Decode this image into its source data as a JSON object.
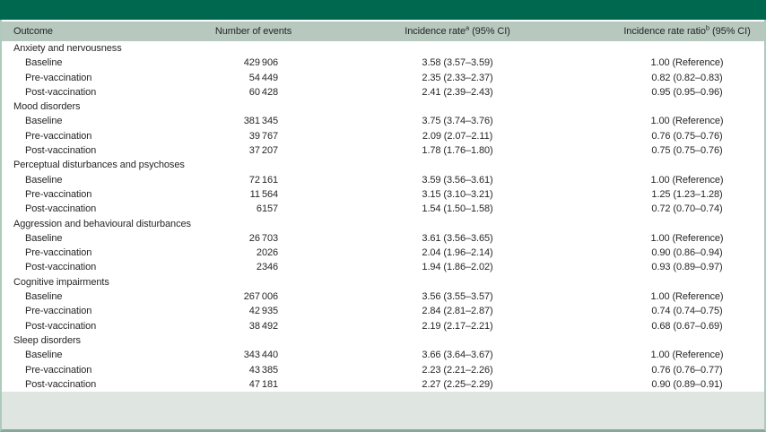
{
  "theme": {
    "title_bar_green": "#00684e",
    "header_band_green": "#b7c8bf",
    "footer_band_green": "#dfe5e0",
    "frame_border_light": "#aecabb",
    "frame_border_strong": "#86a998",
    "text_color": "#262626"
  },
  "table": {
    "columns": {
      "outcome": "Outcome",
      "events": "Number of events",
      "rate": {
        "pre": "Incidence rate",
        "sup": "a",
        "post": " (95% CI)"
      },
      "ratio": {
        "pre": "Incidence rate ratio",
        "sup": "b",
        "post": " (95% CI)"
      }
    },
    "groups": [
      {
        "name": "Anxiety and nervousness",
        "rows": [
          {
            "label": "Baseline",
            "events": "429 906",
            "rate": "3.58 (3.57–3.59)",
            "ratio": "1.00 (Reference)"
          },
          {
            "label": "Pre-vaccination",
            "events": "54 449",
            "rate": "2.35 (2.33–2.37)",
            "ratio": "0.82 (0.82–0.83)"
          },
          {
            "label": "Post-vaccination",
            "events": "60 428",
            "rate": "2.41 (2.39–2.43)",
            "ratio": "0.95 (0.95–0.96)"
          }
        ]
      },
      {
        "name": "Mood disorders",
        "rows": [
          {
            "label": "Baseline",
            "events": "381 345",
            "rate": "3.75 (3.74–3.76)",
            "ratio": "1.00 (Reference)"
          },
          {
            "label": "Pre-vaccination",
            "events": "39 767",
            "rate": "2.09 (2.07–2.11)",
            "ratio": "0.76 (0.75–0.76)"
          },
          {
            "label": "Post-vaccination",
            "events": "37 207",
            "rate": "1.78 (1.76–1.80)",
            "ratio": "0.75 (0.75–0.76)"
          }
        ]
      },
      {
        "name": "Perceptual disturbances and psychoses",
        "rows": [
          {
            "label": "Baseline",
            "events": "72 161",
            "rate": "3.59 (3.56–3.61)",
            "ratio": "1.00 (Reference)"
          },
          {
            "label": "Pre-vaccination",
            "events": "11 564",
            "rate": "3.15 (3.10–3.21)",
            "ratio": "1.25 (1.23–1.28)"
          },
          {
            "label": "Post-vaccination",
            "events": "6157",
            "rate": "1.54 (1.50–1.58)",
            "ratio": "0.72 (0.70–0.74)"
          }
        ]
      },
      {
        "name": "Aggression and behavioural disturbances",
        "rows": [
          {
            "label": "Baseline",
            "events": "26 703",
            "rate": "3.61 (3.56–3.65)",
            "ratio": "1.00 (Reference)"
          },
          {
            "label": "Pre-vaccination",
            "events": "2026",
            "rate": "2.04 (1.96–2.14)",
            "ratio": "0.90 (0.86–0.94)"
          },
          {
            "label": "Post-vaccination",
            "events": "2346",
            "rate": "1.94 (1.86–2.02)",
            "ratio": "0.93 (0.89–0.97)"
          }
        ]
      },
      {
        "name": "Cognitive impairments",
        "rows": [
          {
            "label": "Baseline",
            "events": "267 006",
            "rate": "3.56 (3.55–3.57)",
            "ratio": "1.00 (Reference)"
          },
          {
            "label": "Pre-vaccination",
            "events": "42 935",
            "rate": "2.84 (2.81–2.87)",
            "ratio": "0.74 (0.74–0.75)"
          },
          {
            "label": "Post-vaccination",
            "events": "38 492",
            "rate": "2.19 (2.17–2.21)",
            "ratio": "0.68 (0.67–0.69)"
          }
        ]
      },
      {
        "name": "Sleep disorders",
        "rows": [
          {
            "label": "Baseline",
            "events": "343 440",
            "rate": "3.66 (3.64–3.67)",
            "ratio": "1.00 (Reference)"
          },
          {
            "label": "Pre-vaccination",
            "events": "43 385",
            "rate": "2.23 (2.21–2.26)",
            "ratio": "0.76 (0.76–0.77)"
          },
          {
            "label": "Post-vaccination",
            "events": "47 181",
            "rate": "2.27 (2.25–2.29)",
            "ratio": "0.90 (0.89–0.91)"
          }
        ]
      }
    ]
  }
}
